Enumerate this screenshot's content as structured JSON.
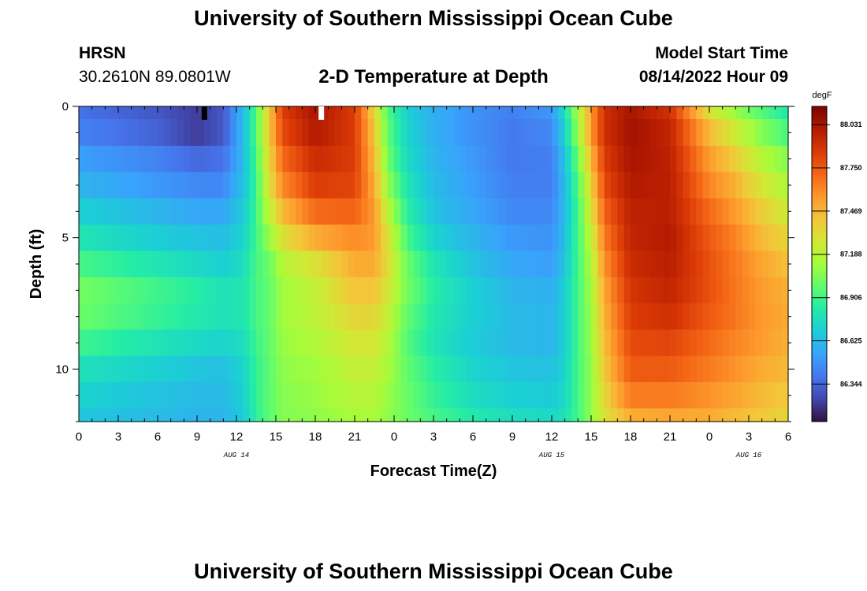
{
  "header": {
    "title": "University of Southern Mississippi Ocean Cube",
    "station": "HRSN",
    "coords": "30.2610N  89.0801W",
    "subtitle": "2-D Temperature at Depth",
    "model_label": "Model Start Time",
    "model_time": "08/14/2022 Hour 09"
  },
  "footer": {
    "title": "University of Southern Mississippi Ocean Cube"
  },
  "chart_data": {
    "type": "heatmap",
    "title": "2-D Temperature at Depth",
    "xlabel": "Forecast Time(Z)",
    "ylabel": "Depth (ft)",
    "xlim": [
      0,
      54
    ],
    "ylim": [
      0,
      12
    ],
    "x_ticks": [
      {
        "v": 0,
        "label": "0"
      },
      {
        "v": 3,
        "label": "3"
      },
      {
        "v": 6,
        "label": "6"
      },
      {
        "v": 9,
        "label": "9"
      },
      {
        "v": 12,
        "label": "12"
      },
      {
        "v": 15,
        "label": "15"
      },
      {
        "v": 18,
        "label": "18"
      },
      {
        "v": 21,
        "label": "21"
      },
      {
        "v": 24,
        "label": "0"
      },
      {
        "v": 27,
        "label": "3"
      },
      {
        "v": 30,
        "label": "6"
      },
      {
        "v": 33,
        "label": "9"
      },
      {
        "v": 36,
        "label": "12"
      },
      {
        "v": 39,
        "label": "15"
      },
      {
        "v": 42,
        "label": "18"
      },
      {
        "v": 45,
        "label": "21"
      },
      {
        "v": 48,
        "label": "0"
      },
      {
        "v": 51,
        "label": "3"
      },
      {
        "v": 54,
        "label": "6"
      }
    ],
    "date_labels": [
      {
        "v": 12,
        "label": "AUG 14"
      },
      {
        "v": 36,
        "label": "AUG 15"
      },
      {
        "v": 51,
        "label": "AUG 16"
      }
    ],
    "y_ticks": [
      {
        "v": 0,
        "label": "0"
      },
      {
        "v": 5,
        "label": "5"
      },
      {
        "v": 10,
        "label": "10"
      }
    ],
    "colorbar": {
      "unit": "degF",
      "min": 86.1,
      "max": 88.15,
      "ticks": [
        88.031,
        87.75,
        87.469,
        87.188,
        86.906,
        86.625,
        86.344
      ]
    },
    "depth_levels": [
      0,
      1,
      2,
      3,
      4,
      5,
      6,
      7,
      8,
      9,
      10,
      11,
      12
    ],
    "series": [
      {
        "x": 0,
        "values": [
          86.38,
          86.43,
          86.52,
          86.6,
          86.7,
          86.8,
          86.92,
          87.02,
          87.0,
          86.9,
          86.78,
          86.72,
          86.66
        ]
      },
      {
        "x": 3,
        "values": [
          86.34,
          86.38,
          86.48,
          86.55,
          86.65,
          86.74,
          86.86,
          86.96,
          86.94,
          86.84,
          86.74,
          86.68,
          86.64
        ]
      },
      {
        "x": 6,
        "values": [
          86.3,
          86.33,
          86.43,
          86.5,
          86.6,
          86.69,
          86.8,
          86.9,
          86.88,
          86.79,
          86.7,
          86.65,
          86.62
        ]
      },
      {
        "x": 9,
        "values": [
          86.22,
          86.22,
          86.35,
          86.45,
          86.55,
          86.65,
          86.74,
          86.84,
          86.82,
          86.74,
          86.66,
          86.62,
          86.6
        ]
      },
      {
        "x": 11,
        "values": [
          86.3,
          86.3,
          86.38,
          86.45,
          86.55,
          86.63,
          86.7,
          86.78,
          86.78,
          86.72,
          86.64,
          86.62,
          86.6
        ]
      },
      {
        "x": 12.5,
        "values": [
          86.62,
          86.62,
          86.62,
          86.64,
          86.68,
          86.72,
          86.76,
          86.8,
          86.8,
          86.76,
          86.72,
          86.7,
          86.68
        ]
      },
      {
        "x": 13.5,
        "values": [
          86.95,
          86.95,
          86.92,
          86.9,
          86.9,
          86.9,
          86.92,
          86.92,
          86.92,
          86.9,
          86.88,
          86.88,
          86.86
        ]
      },
      {
        "x": 14.5,
        "values": [
          87.4,
          87.4,
          87.35,
          87.3,
          87.2,
          87.1,
          87.0,
          86.98,
          86.98,
          86.98,
          86.97,
          86.97,
          86.97
        ]
      },
      {
        "x": 15.5,
        "values": [
          87.85,
          87.8,
          87.7,
          87.6,
          87.45,
          87.3,
          87.18,
          87.12,
          87.12,
          87.1,
          87.08,
          87.06,
          87.06
        ]
      },
      {
        "x": 18,
        "values": [
          88.03,
          88.0,
          87.92,
          87.85,
          87.7,
          87.5,
          87.3,
          87.22,
          87.2,
          87.16,
          87.12,
          87.1,
          87.08
        ]
      },
      {
        "x": 21,
        "values": [
          87.85,
          87.85,
          87.85,
          87.82,
          87.72,
          87.6,
          87.5,
          87.42,
          87.35,
          87.28,
          87.22,
          87.18,
          87.14
        ]
      },
      {
        "x": 22.5,
        "values": [
          87.35,
          87.4,
          87.45,
          87.5,
          87.55,
          87.55,
          87.5,
          87.42,
          87.35,
          87.28,
          87.22,
          87.18,
          87.14
        ]
      },
      {
        "x": 23.5,
        "values": [
          86.95,
          86.98,
          87.02,
          87.1,
          87.2,
          87.3,
          87.32,
          87.28,
          87.22,
          87.18,
          87.14,
          87.1,
          87.08
        ]
      },
      {
        "x": 25,
        "values": [
          86.7,
          86.72,
          86.75,
          86.8,
          86.85,
          86.92,
          87.0,
          87.02,
          86.98,
          86.95,
          86.98,
          87.0,
          87.0
        ]
      },
      {
        "x": 27,
        "values": [
          86.58,
          86.58,
          86.6,
          86.62,
          86.65,
          86.72,
          86.8,
          86.84,
          86.82,
          86.8,
          86.85,
          86.88,
          86.92
        ]
      },
      {
        "x": 30,
        "values": [
          86.48,
          86.48,
          86.5,
          86.52,
          86.55,
          86.6,
          86.65,
          86.7,
          86.7,
          86.68,
          86.72,
          86.76,
          86.82
        ]
      },
      {
        "x": 33,
        "values": [
          86.42,
          86.4,
          86.4,
          86.42,
          86.45,
          86.5,
          86.55,
          86.6,
          86.62,
          86.62,
          86.66,
          86.7,
          86.76
        ]
      },
      {
        "x": 36,
        "values": [
          86.5,
          86.45,
          86.42,
          86.42,
          86.45,
          86.48,
          86.52,
          86.58,
          86.6,
          86.6,
          86.64,
          86.68,
          86.74
        ]
      },
      {
        "x": 37,
        "values": [
          86.78,
          86.72,
          86.66,
          86.62,
          86.62,
          86.64,
          86.66,
          86.7,
          86.7,
          86.7,
          86.72,
          86.74,
          86.78
        ]
      },
      {
        "x": 38,
        "values": [
          87.15,
          87.1,
          87.0,
          86.95,
          86.92,
          86.92,
          86.92,
          86.92,
          86.92,
          86.92,
          86.92,
          86.92,
          86.92
        ]
      },
      {
        "x": 39,
        "values": [
          87.55,
          87.55,
          87.45,
          87.35,
          87.28,
          87.2,
          87.15,
          87.12,
          87.1,
          87.1,
          87.08,
          87.08,
          87.08
        ]
      },
      {
        "x": 40,
        "values": [
          87.9,
          87.9,
          87.85,
          87.8,
          87.72,
          87.65,
          87.58,
          87.52,
          87.48,
          87.44,
          87.4,
          87.35,
          87.3
        ]
      },
      {
        "x": 42,
        "values": [
          88.03,
          88.05,
          88.03,
          88.0,
          87.97,
          87.95,
          87.92,
          87.88,
          87.85,
          87.8,
          87.75,
          87.65,
          87.5
        ]
      },
      {
        "x": 45,
        "values": [
          87.9,
          87.95,
          87.97,
          87.98,
          87.98,
          88.0,
          87.98,
          87.95,
          87.9,
          87.82,
          87.75,
          87.65,
          87.52
        ]
      },
      {
        "x": 48,
        "values": [
          87.3,
          87.45,
          87.55,
          87.62,
          87.7,
          87.75,
          87.78,
          87.78,
          87.75,
          87.7,
          87.65,
          87.58,
          87.5
        ]
      },
      {
        "x": 50,
        "values": [
          87.1,
          87.25,
          87.38,
          87.48,
          87.55,
          87.62,
          87.65,
          87.66,
          87.66,
          87.62,
          87.58,
          87.52,
          87.45
        ]
      },
      {
        "x": 52,
        "values": [
          86.95,
          87.05,
          87.18,
          87.28,
          87.38,
          87.45,
          87.52,
          87.55,
          87.56,
          87.55,
          87.5,
          87.45,
          87.4
        ]
      },
      {
        "x": 54,
        "values": [
          86.82,
          86.92,
          87.05,
          87.15,
          87.25,
          87.35,
          87.42,
          87.48,
          87.5,
          87.48,
          87.45,
          87.4,
          87.35
        ]
      }
    ]
  }
}
